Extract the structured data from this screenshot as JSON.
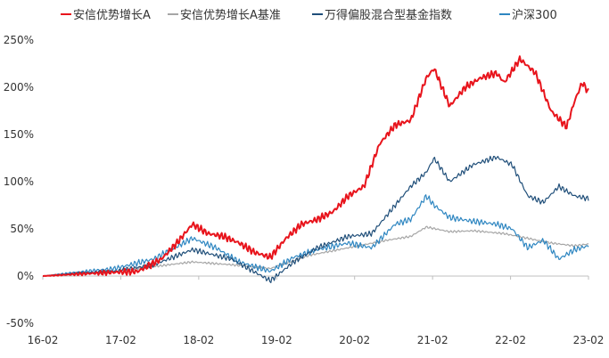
{
  "chart_data": {
    "type": "line",
    "title": "",
    "xlabel": "",
    "ylabel": "",
    "x_ticks": [
      "16-02",
      "17-02",
      "18-02",
      "19-02",
      "20-02",
      "21-02",
      "22-02",
      "23-02"
    ],
    "y_ticks": [
      -50,
      0,
      50,
      100,
      150,
      200,
      250
    ],
    "y_tick_labels": [
      "-50%",
      "0%",
      "50%",
      "100%",
      "150%",
      "200%",
      "250%"
    ],
    "ylim": [
      -50,
      250
    ],
    "xlim": [
      2016.08,
      2023.08
    ],
    "grid": false,
    "legend_position": "top",
    "series": [
      {
        "name": "安信优势增长A",
        "color": "#e8141c",
        "x": [
          2016.08,
          2016.5,
          2017.0,
          2017.3,
          2017.6,
          2017.8,
          2018.0,
          2018.2,
          2018.4,
          2018.6,
          2018.8,
          2019.0,
          2019.2,
          2019.4,
          2019.6,
          2019.8,
          2020.0,
          2020.2,
          2020.4,
          2020.6,
          2020.8,
          2021.0,
          2021.1,
          2021.3,
          2021.5,
          2021.7,
          2021.9,
          2022.0,
          2022.2,
          2022.4,
          2022.6,
          2022.8,
          2022.9,
          2023.0,
          2023.08
        ],
        "y": [
          0,
          2,
          4,
          5,
          18,
          35,
          55,
          45,
          42,
          35,
          25,
          20,
          40,
          55,
          60,
          68,
          85,
          95,
          140,
          160,
          165,
          210,
          220,
          180,
          200,
          210,
          215,
          205,
          230,
          215,
          175,
          158,
          185,
          205,
          195
        ]
      },
      {
        "name": "安信优势增长A基准",
        "color": "#a6a6a6",
        "x": [
          2016.08,
          2016.5,
          2017.0,
          2017.5,
          2018.0,
          2018.5,
          2019.0,
          2019.5,
          2020.0,
          2020.5,
          2020.8,
          2021.0,
          2021.3,
          2021.6,
          2022.0,
          2022.3,
          2022.6,
          2022.9,
          2023.08
        ],
        "y": [
          0,
          2,
          5,
          10,
          15,
          12,
          8,
          22,
          30,
          38,
          42,
          52,
          47,
          48,
          45,
          40,
          35,
          32,
          34
        ]
      },
      {
        "name": "万得偏股混合型基金指数",
        "color": "#1f4e79",
        "x": [
          2016.08,
          2016.5,
          2017.0,
          2017.5,
          2018.0,
          2018.5,
          2019.0,
          2019.3,
          2019.6,
          2020.0,
          2020.3,
          2020.6,
          2020.8,
          2021.0,
          2021.1,
          2021.3,
          2021.6,
          2021.9,
          2022.1,
          2022.3,
          2022.5,
          2022.7,
          2022.9,
          2023.08
        ],
        "y": [
          0,
          3,
          5,
          12,
          28,
          18,
          -5,
          15,
          30,
          42,
          45,
          75,
          95,
          110,
          125,
          100,
          118,
          126,
          118,
          85,
          78,
          95,
          85,
          82
        ]
      },
      {
        "name": "沪深300",
        "color": "#2e86c1",
        "x": [
          2016.08,
          2016.5,
          2017.0,
          2017.5,
          2018.0,
          2018.3,
          2018.6,
          2019.0,
          2019.3,
          2019.6,
          2020.0,
          2020.3,
          2020.6,
          2020.8,
          2021.0,
          2021.1,
          2021.3,
          2021.6,
          2021.9,
          2022.1,
          2022.3,
          2022.5,
          2022.7,
          2022.9,
          2023.08
        ],
        "y": [
          0,
          4,
          8,
          18,
          40,
          30,
          15,
          5,
          20,
          28,
          35,
          30,
          55,
          60,
          85,
          75,
          62,
          58,
          55,
          50,
          30,
          38,
          18,
          28,
          32
        ]
      }
    ]
  }
}
